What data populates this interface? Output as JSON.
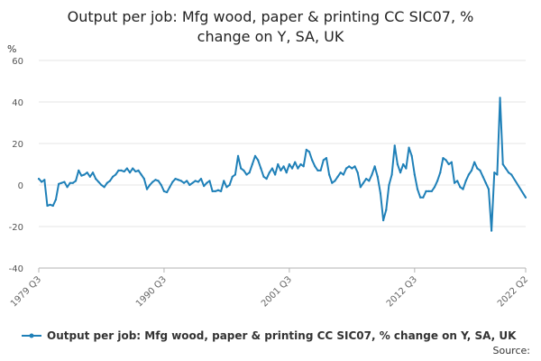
{
  "chart_data": {
    "type": "line",
    "title": "Output per job: Mfg wood, paper & printing CC SIC07, % change on Y, SA, UK",
    "title_lines": [
      "Output per job: Mfg wood, paper & printing CC SIC07, %",
      "change on Y, SA, UK"
    ],
    "ylabel": "%",
    "ylim": [
      -40,
      60
    ],
    "yticks": [
      -40,
      -20,
      0,
      20,
      40,
      60
    ],
    "xlim": [
      "1979 Q3",
      "2022 Q2"
    ],
    "xticks": [
      "1979 Q3",
      "1990 Q3",
      "2001 Q3",
      "2012 Q3",
      "2022 Q2"
    ],
    "legend_position": "bottom",
    "grid": "horizontal",
    "series": [
      {
        "name": "Output per job: Mfg wood, paper & printing CC SIC07, % change on Y, SA, UK",
        "color": "#1f80b8",
        "points": [
          [
            "1979 Q3",
            3
          ],
          [
            "1979 Q4",
            1.5
          ],
          [
            "1980 Q1",
            2.5
          ],
          [
            "1980 Q2",
            -10
          ],
          [
            "1980 Q3",
            -9.5
          ],
          [
            "1980 Q4",
            -10
          ],
          [
            "1981 Q1",
            -7
          ],
          [
            "1981 Q2",
            0.5
          ],
          [
            "1981 Q3",
            1
          ],
          [
            "1981 Q4",
            1.5
          ],
          [
            "1982 Q1",
            -1
          ],
          [
            "1982 Q2",
            1
          ],
          [
            "1982 Q3",
            1
          ],
          [
            "1982 Q4",
            2
          ],
          [
            "1983 Q1",
            7
          ],
          [
            "1983 Q2",
            4.5
          ],
          [
            "1983 Q3",
            5
          ],
          [
            "1983 Q4",
            6
          ],
          [
            "1984 Q1",
            4
          ],
          [
            "1984 Q2",
            6
          ],
          [
            "1984 Q3",
            3
          ],
          [
            "1984 Q4",
            1.5
          ],
          [
            "1985 Q1",
            0
          ],
          [
            "1985 Q2",
            -1
          ],
          [
            "1985 Q3",
            1
          ],
          [
            "1985 Q4",
            2
          ],
          [
            "1986 Q1",
            4
          ],
          [
            "1986 Q2",
            5
          ],
          [
            "1986 Q3",
            7
          ],
          [
            "1986 Q4",
            7
          ],
          [
            "1987 Q1",
            6.5
          ],
          [
            "1987 Q2",
            8
          ],
          [
            "1987 Q3",
            6
          ],
          [
            "1987 Q4",
            8
          ],
          [
            "1988 Q1",
            6.5
          ],
          [
            "1988 Q2",
            7
          ],
          [
            "1988 Q3",
            5
          ],
          [
            "1988 Q4",
            3
          ],
          [
            "1989 Q1",
            -2
          ],
          [
            "1989 Q2",
            0
          ],
          [
            "1989 Q3",
            1.5
          ],
          [
            "1989 Q4",
            2.5
          ],
          [
            "1990 Q1",
            2
          ],
          [
            "1990 Q2",
            0
          ],
          [
            "1990 Q3",
            -3
          ],
          [
            "1990 Q4",
            -3.5
          ],
          [
            "1991 Q1",
            -1
          ],
          [
            "1991 Q2",
            1.5
          ],
          [
            "1991 Q3",
            3
          ],
          [
            "1991 Q4",
            2.5
          ],
          [
            "1992 Q1",
            2
          ],
          [
            "1992 Q2",
            1
          ],
          [
            "1992 Q3",
            2
          ],
          [
            "1992 Q4",
            0
          ],
          [
            "1993 Q1",
            1
          ],
          [
            "1993 Q2",
            2
          ],
          [
            "1993 Q3",
            1.5
          ],
          [
            "1993 Q4",
            3
          ],
          [
            "1994 Q1",
            -0.5
          ],
          [
            "1994 Q2",
            1
          ],
          [
            "1994 Q3",
            2
          ],
          [
            "1994 Q4",
            -3
          ],
          [
            "1995 Q1",
            -3
          ],
          [
            "1995 Q2",
            -2.5
          ],
          [
            "1995 Q3",
            -3
          ],
          [
            "1995 Q4",
            2
          ],
          [
            "1996 Q1",
            -1
          ],
          [
            "1996 Q2",
            0
          ],
          [
            "1996 Q3",
            4
          ],
          [
            "1996 Q4",
            5
          ],
          [
            "1997 Q1",
            14
          ],
          [
            "1997 Q2",
            8
          ],
          [
            "1997 Q3",
            7
          ],
          [
            "1997 Q4",
            5
          ],
          [
            "1998 Q1",
            6
          ],
          [
            "1998 Q2",
            10
          ],
          [
            "1998 Q3",
            14
          ],
          [
            "1998 Q4",
            12
          ],
          [
            "1999 Q1",
            8
          ],
          [
            "1999 Q2",
            4
          ],
          [
            "1999 Q3",
            3
          ],
          [
            "1999 Q4",
            6
          ],
          [
            "2000 Q1",
            8
          ],
          [
            "2000 Q2",
            5
          ],
          [
            "2000 Q3",
            10
          ],
          [
            "2000 Q4",
            7
          ],
          [
            "2001 Q1",
            9
          ],
          [
            "2001 Q2",
            6
          ],
          [
            "2001 Q3",
            10
          ],
          [
            "2001 Q4",
            8
          ],
          [
            "2002 Q1",
            11
          ],
          [
            "2002 Q2",
            8
          ],
          [
            "2002 Q3",
            10
          ],
          [
            "2002 Q4",
            9
          ],
          [
            "2003 Q1",
            17
          ],
          [
            "2003 Q2",
            16
          ],
          [
            "2003 Q3",
            12
          ],
          [
            "2003 Q4",
            9
          ],
          [
            "2004 Q1",
            7
          ],
          [
            "2004 Q2",
            7
          ],
          [
            "2004 Q3",
            12
          ],
          [
            "2004 Q4",
            13
          ],
          [
            "2005 Q1",
            5
          ],
          [
            "2005 Q2",
            1
          ],
          [
            "2005 Q3",
            2
          ],
          [
            "2005 Q4",
            4
          ],
          [
            "2006 Q1",
            6
          ],
          [
            "2006 Q2",
            5
          ],
          [
            "2006 Q3",
            8
          ],
          [
            "2006 Q4",
            9
          ],
          [
            "2007 Q1",
            8
          ],
          [
            "2007 Q2",
            9
          ],
          [
            "2007 Q3",
            6
          ],
          [
            "2007 Q4",
            -1
          ],
          [
            "2008 Q1",
            1
          ],
          [
            "2008 Q2",
            3
          ],
          [
            "2008 Q3",
            2
          ],
          [
            "2008 Q4",
            5
          ],
          [
            "2009 Q1",
            9
          ],
          [
            "2009 Q2",
            4
          ],
          [
            "2009 Q3",
            -4
          ],
          [
            "2009 Q4",
            -17
          ],
          [
            "2010 Q1",
            -12
          ],
          [
            "2010 Q2",
            0
          ],
          [
            "2010 Q3",
            5
          ],
          [
            "2010 Q4",
            19
          ],
          [
            "2011 Q1",
            10
          ],
          [
            "2011 Q2",
            6
          ],
          [
            "2011 Q3",
            10
          ],
          [
            "2011 Q4",
            8
          ],
          [
            "2012 Q1",
            18
          ],
          [
            "2012 Q2",
            14
          ],
          [
            "2012 Q3",
            5
          ],
          [
            "2012 Q4",
            -2
          ],
          [
            "2013 Q1",
            -6
          ],
          [
            "2013 Q2",
            -6
          ],
          [
            "2013 Q3",
            -3
          ],
          [
            "2013 Q4",
            -3
          ],
          [
            "2014 Q1",
            -3
          ],
          [
            "2014 Q2",
            -1
          ],
          [
            "2014 Q3",
            2
          ],
          [
            "2014 Q4",
            6
          ],
          [
            "2015 Q1",
            13
          ],
          [
            "2015 Q2",
            12
          ],
          [
            "2015 Q3",
            10
          ],
          [
            "2015 Q4",
            11
          ],
          [
            "2016 Q1",
            1
          ],
          [
            "2016 Q2",
            2
          ],
          [
            "2016 Q3",
            -1
          ],
          [
            "2016 Q4",
            -2
          ],
          [
            "2017 Q1",
            2
          ],
          [
            "2017 Q2",
            5
          ],
          [
            "2017 Q3",
            7
          ],
          [
            "2017 Q4",
            11
          ],
          [
            "2018 Q1",
            8
          ],
          [
            "2018 Q2",
            7
          ],
          [
            "2018 Q3",
            4
          ],
          [
            "2018 Q4",
            1
          ],
          [
            "2019 Q1",
            -2
          ],
          [
            "2019 Q2",
            -22
          ],
          [
            "2019 Q3",
            6
          ],
          [
            "2019 Q4",
            5
          ],
          [
            "2020 Q1",
            42
          ],
          [
            "2020 Q2",
            10
          ],
          [
            "2020 Q3",
            8
          ],
          [
            "2020 Q4",
            6
          ],
          [
            "2021 Q1",
            5
          ],
          [
            "2022 Q2",
            -6
          ]
        ]
      }
    ]
  },
  "source_label": "Source:"
}
